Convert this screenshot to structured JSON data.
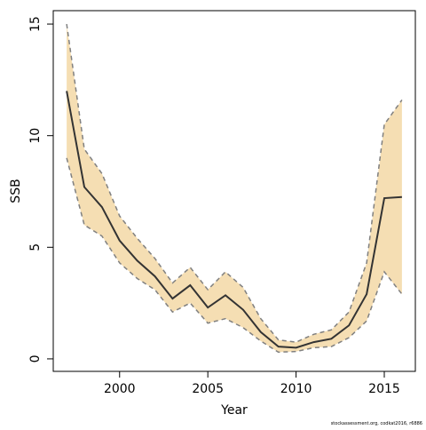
{
  "chart_data": {
    "type": "line-band",
    "x_label": "Year",
    "y_label": "SSB",
    "footnote": "stockassessment.org, codkat2016, r6886",
    "x": [
      1997,
      1998,
      1999,
      2000,
      2001,
      2002,
      2003,
      2004,
      2005,
      2006,
      2007,
      2008,
      2009,
      2010,
      2011,
      2012,
      2013,
      2014,
      2015,
      2016
    ],
    "values": [
      12.0,
      7.7,
      6.8,
      5.3,
      4.4,
      3.7,
      2.7,
      3.3,
      2.3,
      2.85,
      2.2,
      1.2,
      0.55,
      0.5,
      0.75,
      0.9,
      1.5,
      2.9,
      7.2,
      7.25
    ],
    "upper": [
      15.0,
      9.4,
      8.3,
      6.4,
      5.4,
      4.5,
      3.4,
      4.1,
      3.1,
      3.9,
      3.2,
      1.8,
      0.85,
      0.75,
      1.1,
      1.3,
      2.1,
      4.3,
      10.5,
      11.6
    ],
    "lower": [
      9.0,
      6.0,
      5.5,
      4.3,
      3.6,
      3.1,
      2.1,
      2.5,
      1.6,
      1.8,
      1.4,
      0.8,
      0.3,
      0.33,
      0.5,
      0.55,
      0.95,
      1.7,
      3.9,
      2.9
    ],
    "line_color": "#333333",
    "band_color": "#f5deb3",
    "band_edge_color": "#808080",
    "xlim": [
      1996.24,
      2016.76
    ],
    "ylim": [
      -0.56,
      15.6
    ],
    "xticks": [
      2000,
      2005,
      2010,
      2015
    ],
    "yticks": [
      0,
      5,
      10,
      15
    ]
  }
}
